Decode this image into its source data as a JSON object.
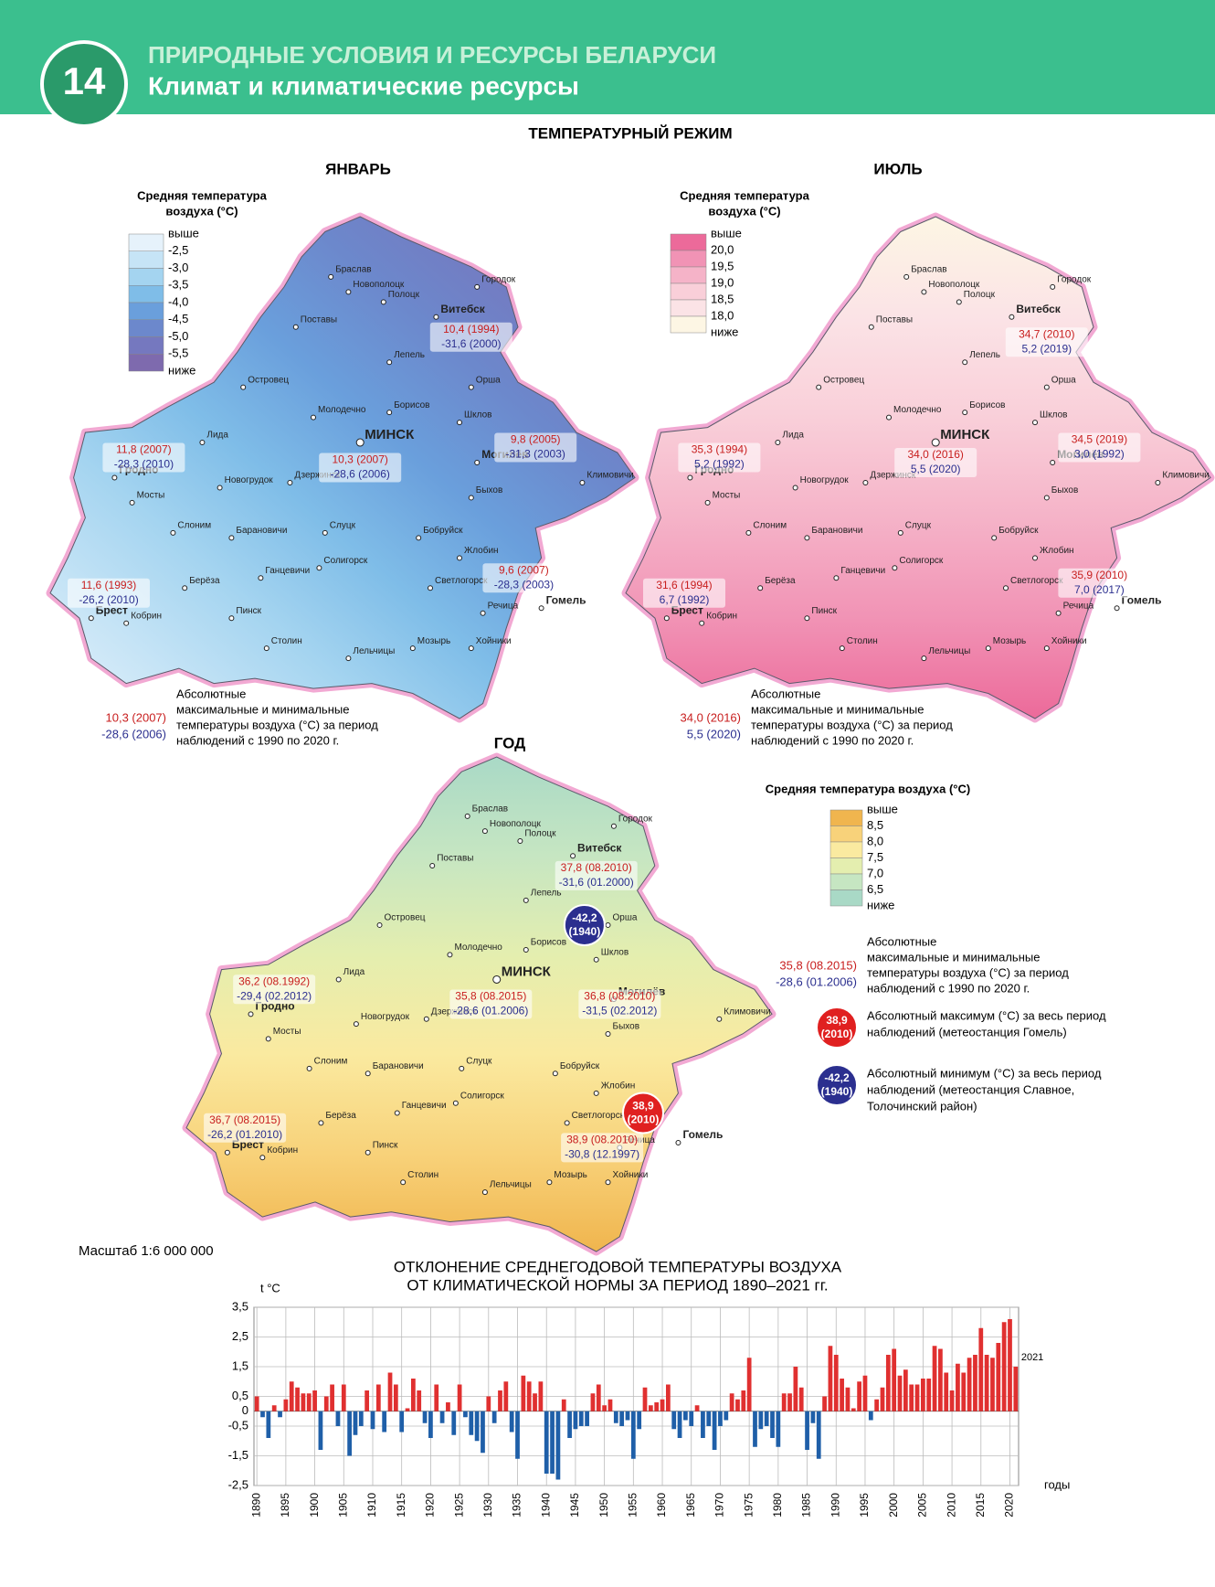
{
  "header": {
    "number": "14",
    "subject": "ПРИРОДНЫЕ УСЛОВИЯ И РЕСУРСЫ БЕЛАРУСИ",
    "title": "Климат и климатические ресурсы"
  },
  "section_title": "ТЕМПЕРАТУРНЫЙ РЕЖИМ",
  "cities": [
    "Браслав",
    "Новополоцк",
    "Полоцк",
    "Городок",
    "Витебск",
    "Поставы",
    "Лепель",
    "Островец",
    "Орша",
    "Молодечно",
    "Борисов",
    "Шклов",
    "Могилёв",
    "МИНСК",
    "Лида",
    "Гродно",
    "Новогрудок",
    "Дзержинск",
    "Мосты",
    "Быхов",
    "Климовичи",
    "Слоним",
    "Барановичи",
    "Слуцк",
    "Бобруйск",
    "Жлобин",
    "Ганцевичи",
    "Солигорск",
    "Берёза",
    "Светлогорск",
    "Брест",
    "Кобрин",
    "Пинск",
    "Речица",
    "Гомель",
    "Столин",
    "Мозырь",
    "Хойники",
    "Лельчицы"
  ],
  "maps": [
    {
      "title": "ЯНВАРЬ",
      "legend": {
        "title": [
          "Средняя температура",
          "воздуха (°C)"
        ],
        "labels": [
          "выше",
          "-2,5",
          "-3,0",
          "-3,5",
          "-4,0",
          "-4,5",
          "-5,0",
          "-5,5",
          "ниже"
        ],
        "colors": [
          "#e6f2fb",
          "#c6e4f6",
          "#a4d4f0",
          "#7fbde8",
          "#6a9fdc",
          "#6c88cc",
          "#7578bf",
          "#7e6aae"
        ]
      },
      "records": [
        {
          "max": "10,4 (1994)",
          "min": "-31,6 (2000)"
        },
        {
          "max": "10,3 (2007)",
          "min": "-28,6 (2006)"
        },
        {
          "max": "11,8 (2007)",
          "min": "-28,3 (2010)"
        },
        {
          "max": "9,8 (2005)",
          "min": "-31,3 (2003)"
        },
        {
          "max": "9,6 (2007)",
          "min": "-28,3 (2003)"
        },
        {
          "max": "11,6 (1993)",
          "min": "-26,2 (2010)"
        }
      ],
      "note": {
        "max": "10,3 (2007)",
        "min": "-28,6 (2006)",
        "text": [
          "Абсолютные",
          "максимальные и минимальные",
          "температуры воздуха (°C) за период",
          "наблюдений с 1990 по 2020 г."
        ]
      }
    },
    {
      "title": "ИЮЛЬ",
      "legend": {
        "title": [
          "Средняя температура",
          "воздуха (°C)"
        ],
        "labels": [
          "выше",
          "20,0",
          "19,5",
          "19,0",
          "18,5",
          "18,0",
          "ниже"
        ],
        "colors": [
          "#ec6a9a",
          "#f193b5",
          "#f5b3c8",
          "#f9cfd9",
          "#fbe3e6",
          "#fdf6e4"
        ]
      },
      "records": [
        {
          "max": "34,7 (2010)",
          "min": "5,2 (2019)"
        },
        {
          "max": "34,0 (2016)",
          "min": "5,5 (2020)"
        },
        {
          "max": "35,3 (1994)",
          "min": "5,2 (1992)"
        },
        {
          "max": "34,5 (2019)",
          "min": "3,0 (1992)"
        },
        {
          "max": "35,9 (2010)",
          "min": "7,0 (2017)"
        },
        {
          "max": "31,6 (1994)",
          "min": "6,7 (1992)"
        }
      ],
      "note": {
        "max": "34,0 (2016)",
        "min": "5,5 (2020)",
        "text": [
          "Абсолютные",
          "максимальные и минимальные",
          "температуры воздуха (°C) за период",
          "наблюдений с 1990 по 2020 г."
        ]
      }
    },
    {
      "title": "ГОД",
      "legend": {
        "title": [
          "Средняя температура воздуха (°C)"
        ],
        "labels": [
          "выше",
          "8,5",
          "8,0",
          "7,5",
          "7,0",
          "6,5",
          "ниже"
        ],
        "colors": [
          "#f0b54e",
          "#f8d27a",
          "#faeaa0",
          "#e4eeaf",
          "#c6e6c2",
          "#a9d9c6"
        ]
      },
      "records": [
        {
          "max": "37,8 (08.2010)",
          "min": "-31,6 (01.2000)"
        },
        {
          "max": "35,8 (08.2015)",
          "min": "-28,6 (01.2006)"
        },
        {
          "max": "36,2 (08.1992)",
          "min": "-29,4 (02.2012)"
        },
        {
          "max": "36,8 (08.2010)",
          "min": "-31,5 (02.2012)"
        },
        {
          "max": "38,9 (08.2010)",
          "min": "-30,8 (12.1997)"
        },
        {
          "max": "36,7 (08.2015)",
          "min": "-26,2 (01.2010)"
        }
      ],
      "note": {
        "max": "35,8 (08.2015)",
        "min": "-28,6 (01.2006)",
        "text": [
          "Абсолютные",
          "максимальные и минимальные",
          "температуры воздуха (°C) за период",
          "наблюдений с 1990 по 2020 г."
        ]
      },
      "extremes": [
        {
          "lines": [
            "-42,2",
            "(1940)"
          ],
          "color": "#2b2f8f",
          "text": [
            "Абсолютный минимум (°C) за весь период",
            "наблюдений (метеостанция Славное,",
            "Толочинский район)"
          ]
        },
        {
          "lines": [
            "38,9",
            "(2010)"
          ],
          "color": "#e02020",
          "text": [
            "Абсолютный максимум (°C) за весь период",
            "наблюдений (метеостанция Гомель)"
          ]
        }
      ]
    }
  ],
  "scale": "Масштаб 1:6 000 000",
  "chart_data": {
    "type": "bar",
    "title": [
      "ОТКЛОНЕНИЕ СРЕДНЕГОДОВОЙ ТЕМПЕРАТУРЫ ВОЗДУХА",
      "ОТ КЛИМАТИЧЕСКОЙ НОРМЫ ЗА ПЕРИОД 1890–2021 гг."
    ],
    "y_label": "t °C",
    "x_label": "годы",
    "x": [
      1890,
      1891,
      1892,
      1893,
      1894,
      1895,
      1896,
      1897,
      1898,
      1899,
      1900,
      1901,
      1902,
      1903,
      1904,
      1905,
      1906,
      1907,
      1908,
      1909,
      1910,
      1911,
      1912,
      1913,
      1914,
      1915,
      1916,
      1917,
      1918,
      1919,
      1920,
      1921,
      1922,
      1923,
      1924,
      1925,
      1926,
      1927,
      1928,
      1929,
      1930,
      1931,
      1932,
      1933,
      1934,
      1935,
      1936,
      1937,
      1938,
      1939,
      1940,
      1941,
      1942,
      1943,
      1944,
      1945,
      1946,
      1947,
      1948,
      1949,
      1950,
      1951,
      1952,
      1953,
      1954,
      1955,
      1956,
      1957,
      1958,
      1959,
      1960,
      1961,
      1962,
      1963,
      1964,
      1965,
      1966,
      1967,
      1968,
      1969,
      1970,
      1971,
      1972,
      1973,
      1974,
      1975,
      1976,
      1977,
      1978,
      1979,
      1980,
      1981,
      1982,
      1983,
      1984,
      1985,
      1986,
      1987,
      1988,
      1989,
      1990,
      1991,
      1992,
      1993,
      1994,
      1995,
      1996,
      1997,
      1998,
      1999,
      2000,
      2001,
      2002,
      2003,
      2004,
      2005,
      2006,
      2007,
      2008,
      2009,
      2010,
      2011,
      2012,
      2013,
      2014,
      2015,
      2016,
      2017,
      2018,
      2019,
      2020,
      2021
    ],
    "values": [
      0.5,
      -0.2,
      -0.9,
      0.2,
      -0.2,
      0.4,
      1.0,
      0.8,
      0.6,
      0.6,
      0.7,
      -1.3,
      0.5,
      0.9,
      -0.5,
      0.9,
      -1.5,
      -0.8,
      -0.5,
      0.7,
      -0.6,
      0.9,
      -0.7,
      1.3,
      0.9,
      -0.7,
      0.1,
      1.1,
      0.7,
      -0.4,
      -0.9,
      0.9,
      -0.4,
      0.3,
      -0.8,
      0.9,
      -0.2,
      -0.8,
      -1.0,
      -1.4,
      0.5,
      -0.4,
      0.7,
      1.0,
      -0.7,
      -1.6,
      1.2,
      1.0,
      0.6,
      1.0,
      -2.1,
      -2.1,
      -2.3,
      0.4,
      -0.9,
      -0.6,
      -0.5,
      -0.5,
      0.6,
      0.9,
      0.2,
      0.4,
      -0.4,
      -0.5,
      -0.3,
      -1.6,
      -0.6,
      0.8,
      0.2,
      0.3,
      0.4,
      0.9,
      -0.6,
      -0.9,
      -0.3,
      -0.5,
      0.2,
      -0.9,
      -0.5,
      -1.3,
      -0.5,
      -0.3,
      0.6,
      0.4,
      0.7,
      1.8,
      -1.2,
      -0.6,
      -0.5,
      -0.9,
      -1.2,
      0.6,
      0.6,
      1.5,
      0.8,
      -1.3,
      -0.4,
      -1.6,
      0.5,
      2.2,
      1.9,
      1.1,
      0.8,
      0.1,
      1.0,
      1.2,
      -0.3,
      0.4,
      0.8,
      1.9,
      2.1,
      1.2,
      1.4,
      0.9,
      0.9,
      1.1,
      1.1,
      2.2,
      2.1,
      1.3,
      0.7,
      1.6,
      1.3,
      1.8,
      1.9,
      2.8,
      1.9,
      1.8,
      2.3,
      3.0,
      3.1,
      1.5
    ],
    "positive_color": "#e03030",
    "negative_color": "#1f5fa8",
    "xlim": [
      1889.5,
      2021.5
    ],
    "xticks": [
      1890,
      1895,
      1900,
      1905,
      1910,
      1915,
      1920,
      1925,
      1930,
      1935,
      1940,
      1945,
      1950,
      1955,
      1960,
      1965,
      1970,
      1975,
      1980,
      1985,
      1990,
      1995,
      2000,
      2005,
      2010,
      2015,
      2020
    ],
    "ylim": [
      -2.5,
      3.5
    ],
    "yticks": [
      {
        "value": 3.5,
        "label": "3,5"
      },
      {
        "value": 2.5,
        "label": "2,5"
      },
      {
        "value": 1.5,
        "label": "1,5"
      },
      {
        "value": 0.5,
        "label": "0,5"
      },
      0,
      {
        "value": -0.5,
        "label": "-0,5"
      },
      {
        "value": -1.5,
        "label": "-1,5"
      },
      {
        "value": -2.5,
        "label": "-2,5"
      }
    ],
    "grid": true
  }
}
